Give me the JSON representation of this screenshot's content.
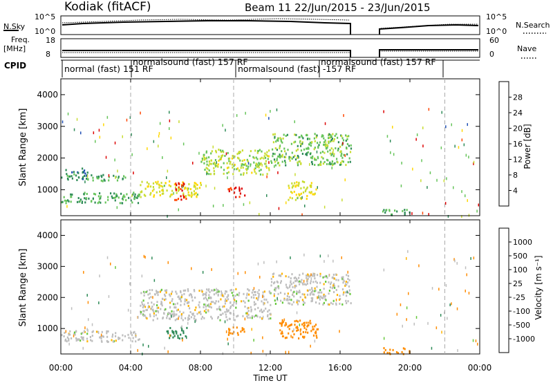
{
  "header": {
    "radar_title": "Kodiak (fitACF)",
    "beam_info": "Beam 11  22/Jun/2015 - 23/Jun/2015"
  },
  "summary": {
    "nsky_label": "N.Sky",
    "nsky_ticks": [
      "10^5",
      "10^0"
    ],
    "nsearch_label": "N.Search",
    "nsearch_ticks": [
      "10^5",
      "10^0"
    ],
    "freq_label": "Freq.",
    "freq_unit": "[MHz]",
    "freq_ticks": [
      "18",
      "8"
    ],
    "nave_label": "Nave",
    "nave_ticks": [
      "60",
      "0"
    ],
    "cpid_label": "CPID",
    "cpid_segments": [
      "normal (fast)  151 RF",
      "normalsound (fast) 157 RF",
      "normalsound (fast) -157 RF",
      "normalsound (fast) 157 RF"
    ]
  },
  "panels": {
    "power_colorbar_label": "Power [dB]",
    "velocity_colorbar_label": "Velocity [m s⁻¹]",
    "ylabel": "Slant Range [km]",
    "xlabel": "Time UT"
  },
  "colors": {
    "power_scale": [
      "#0a1aff",
      "#1f4fb4",
      "#2e8b57",
      "#66c45a",
      "#c8dc32",
      "#ffd700",
      "#ff8c00",
      "#ff4500",
      "#dd0000"
    ],
    "velocity_scale": [
      "#dd0000",
      "#ff4500",
      "#ff8c00",
      "#ffb400",
      "#bebebe",
      "#bebebe",
      "#66c83c",
      "#2e8b57",
      "#1f4fb4",
      "#0a1aff"
    ]
  },
  "chart_data": [
    {
      "type": "heatmap",
      "title": "Power",
      "colorbar_label": "Power [dB]",
      "colorbar_ticks": [
        "4",
        "8",
        "12",
        "16",
        "20",
        "24",
        "28"
      ],
      "colorbar_range": [
        0,
        30
      ],
      "x": [
        "00:00",
        "04:00",
        "08:00",
        "12:00",
        "16:00",
        "20:00",
        "00:00"
      ],
      "xlim_hours": [
        0,
        24
      ],
      "y_ticks": [
        "1000",
        "2000",
        "3000",
        "4000"
      ],
      "ylim_km": [
        180,
        4500
      ],
      "ylabel": "Slant Range [km]",
      "xlabel": "Time UT",
      "data_gap_hours": [
        16.6,
        18.4
      ],
      "dashed_verticals_hours": [
        4.0,
        9.9,
        22.0
      ],
      "echo_regions": [
        {
          "t": [
            0.0,
            1.5
          ],
          "r": [
            1300,
            1700
          ],
          "dB": 8
        },
        {
          "t": [
            1.5,
            4.0
          ],
          "r": [
            1300,
            1500
          ],
          "dB": 10
        },
        {
          "t": [
            0.0,
            4.5
          ],
          "r": [
            600,
            950
          ],
          "dB": 10
        },
        {
          "t": [
            4.5,
            8.0
          ],
          "r": [
            800,
            1300
          ],
          "dB": 16
        },
        {
          "t": [
            6.5,
            7.2
          ],
          "r": [
            700,
            1300
          ],
          "dB": 28
        },
        {
          "t": [
            8.0,
            12.0
          ],
          "r": [
            1500,
            2300
          ],
          "dB": 14
        },
        {
          "t": [
            9.5,
            10.5
          ],
          "r": [
            800,
            1100
          ],
          "dB": 28
        },
        {
          "t": [
            13.0,
            14.6
          ],
          "r": [
            700,
            1300
          ],
          "dB": 16
        },
        {
          "t": [
            12.0,
            16.6
          ],
          "r": [
            1800,
            2800
          ],
          "dB": 12
        },
        {
          "t": [
            18.4,
            20.0
          ],
          "r": [
            200,
            400
          ],
          "dB": 10
        }
      ]
    },
    {
      "type": "heatmap",
      "title": "Velocity",
      "colorbar_label": "Velocity [m s⁻¹]",
      "colorbar_ticks": [
        "-1000",
        "-500",
        "-100",
        "-25",
        "25",
        "100",
        "500",
        "1000"
      ],
      "colorbar_range": [
        -1000,
        1000
      ],
      "x": [
        "00:00",
        "04:00",
        "08:00",
        "12:00",
        "16:00",
        "20:00",
        "00:00"
      ],
      "xlim_hours": [
        0,
        24
      ],
      "y_ticks": [
        "1000",
        "2000",
        "3000",
        "4000"
      ],
      "ylim_km": [
        180,
        4500
      ],
      "ylabel": "Slant Range [km]",
      "xlabel": "Time UT",
      "data_gap_hours": [
        16.6,
        18.4
      ],
      "dashed_verticals_hours": [
        4.0,
        9.9,
        22.0
      ],
      "echo_regions": [
        {
          "t": [
            0.0,
            4.5
          ],
          "r": [
            600,
            950
          ],
          "v": 0
        },
        {
          "t": [
            4.5,
            12.0
          ],
          "r": [
            1300,
            2300
          ],
          "v": 0
        },
        {
          "t": [
            6.0,
            7.2
          ],
          "r": [
            700,
            1100
          ],
          "v": 300
        },
        {
          "t": [
            9.5,
            10.5
          ],
          "r": [
            800,
            1100
          ],
          "v": -200
        },
        {
          "t": [
            12.5,
            14.8
          ],
          "r": [
            700,
            1300
          ],
          "v": -150
        },
        {
          "t": [
            12.0,
            16.6
          ],
          "r": [
            1800,
            2800
          ],
          "v": 0
        },
        {
          "t": [
            18.4,
            20.0
          ],
          "r": [
            200,
            400
          ],
          "v": -200
        }
      ]
    }
  ]
}
